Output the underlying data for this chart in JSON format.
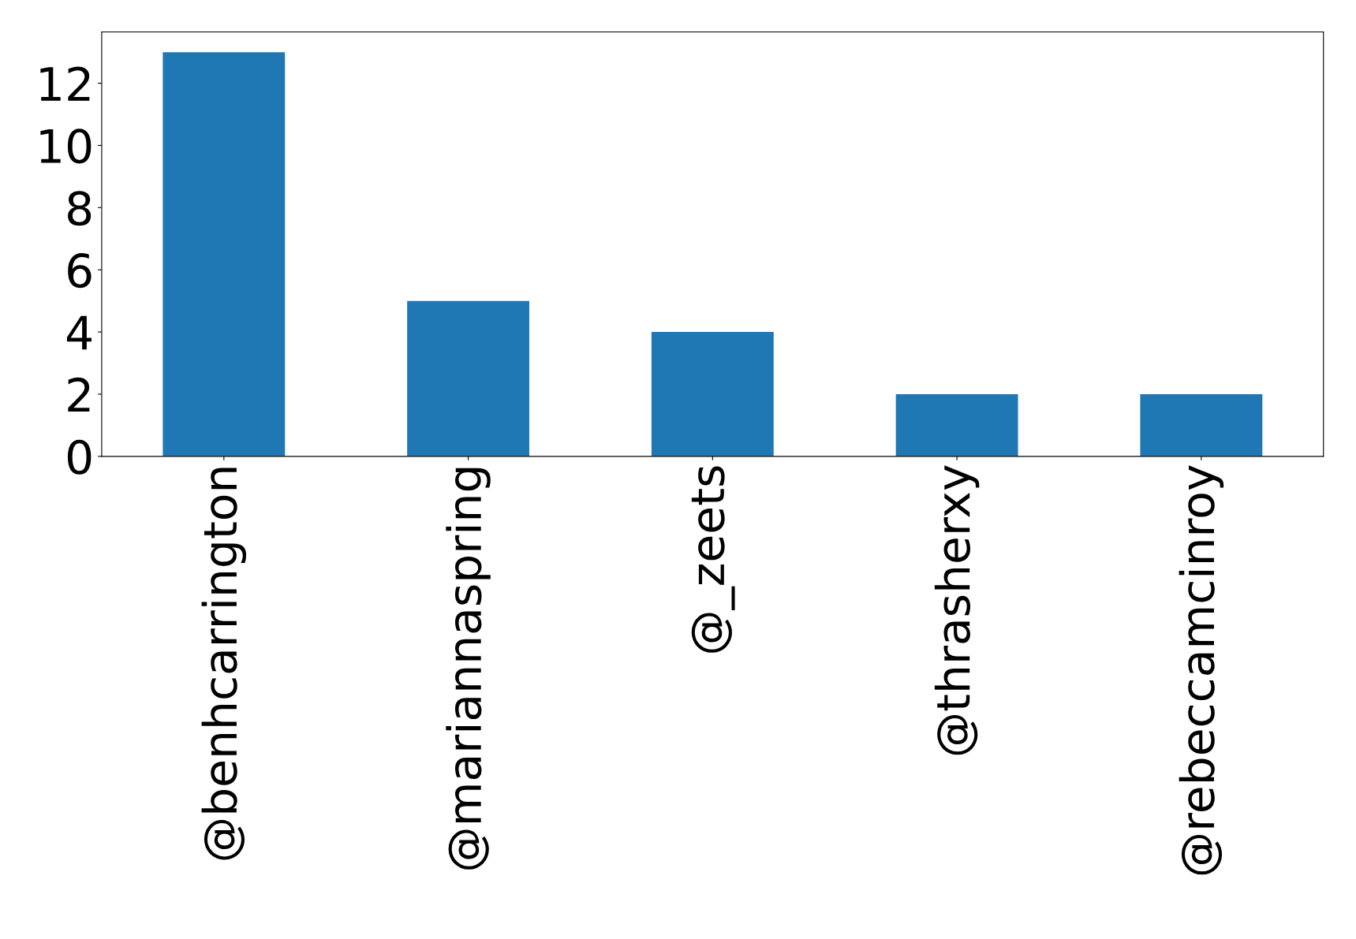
{
  "chart_data": {
    "type": "bar",
    "categories": [
      "@benhcarrington",
      "@mariannaspring",
      "@_zeets",
      "@thrasherxy",
      "@rebeccamcinroy"
    ],
    "values": [
      13,
      5,
      4,
      2,
      2
    ],
    "color": "#1f77b4",
    "ylim": [
      0,
      13.65
    ],
    "yticks": [
      0,
      2,
      4,
      6,
      8,
      10,
      12
    ],
    "grid": false,
    "legend": false
  }
}
